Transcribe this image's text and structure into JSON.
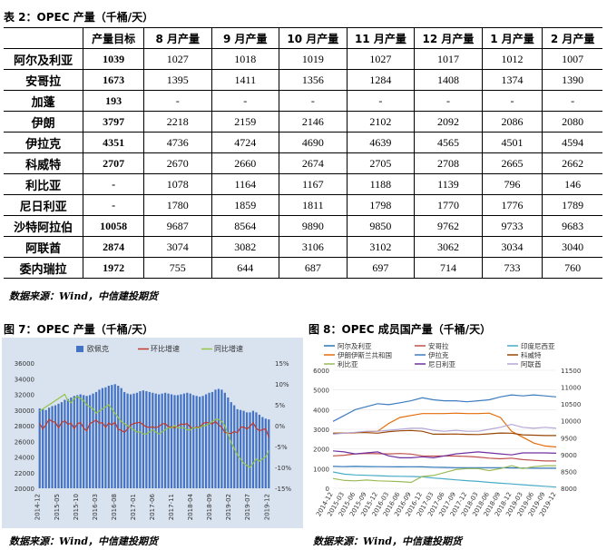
{
  "table": {
    "caption": "表 2：OPEC 产量（千桶/天）",
    "headers": [
      "",
      "产量目标",
      "8 月产量",
      "9 月产量",
      "10 月产量",
      "11 月产量",
      "12 月产量",
      "1 月产量",
      "2 月产量"
    ],
    "rows": [
      [
        "阿尔及利亚",
        "1039",
        "1027",
        "1018",
        "1019",
        "1027",
        "1017",
        "1012",
        "1007"
      ],
      [
        "安哥拉",
        "1673",
        "1395",
        "1411",
        "1356",
        "1284",
        "1408",
        "1374",
        "1390"
      ],
      [
        "加蓬",
        "193",
        "-",
        "-",
        "-",
        "-",
        "-",
        "-",
        "-"
      ],
      [
        "伊朗",
        "3797",
        "2218",
        "2159",
        "2146",
        "2102",
        "2092",
        "2086",
        "2080"
      ],
      [
        "伊拉克",
        "4351",
        "4736",
        "4724",
        "4690",
        "4639",
        "4565",
        "4501",
        "4594"
      ],
      [
        "科威特",
        "2707",
        "2670",
        "2660",
        "2674",
        "2705",
        "2708",
        "2665",
        "2662"
      ],
      [
        "利比亚",
        "-",
        "1078",
        "1164",
        "1167",
        "1188",
        "1139",
        "796",
        "146"
      ],
      [
        "尼日利亚",
        "-",
        "1780",
        "1859",
        "1811",
        "1798",
        "1770",
        "1776",
        "1789"
      ],
      [
        "沙特阿拉伯",
        "10058",
        "9687",
        "8564",
        "9890",
        "9850",
        "9762",
        "9733",
        "9683"
      ],
      [
        "阿联酋",
        "2874",
        "3074",
        "3082",
        "3106",
        "3102",
        "3062",
        "3034",
        "3040"
      ],
      [
        "委内瑞拉",
        "1972",
        "755",
        "644",
        "687",
        "697",
        "714",
        "733",
        "760"
      ]
    ],
    "source": "数据来源：Wind，中信建投期货"
  },
  "figure7": {
    "caption": "图 7：OPEC 产量（千桶/天）",
    "source": "数据来源：Wind，中信建投期货"
  },
  "figure8": {
    "caption": "图 8：OPEC 成员国产量（千桶/天）",
    "source": "数据来源：Wind，中信建投期货"
  },
  "colors": {
    "bar": "#4472C4",
    "mom": "#C0392B",
    "yoy": "#92C447",
    "chart_bg": "#D9E3F0"
  },
  "chart_data": [
    {
      "type": "bar",
      "legend": [
        "欧佩克",
        "环比增速",
        "同比增速"
      ],
      "legend_position": "top",
      "x_ticks": [
        "2014-12",
        "2015-05",
        "2015-10",
        "2016-03",
        "2016-08",
        "2017-01",
        "2017-06",
        "2017-11",
        "2018-04",
        "2018-09",
        "2019-02",
        "2019-07",
        "2019-12"
      ],
      "ylim_left": [
        20000,
        36000
      ],
      "y_ticks_left": [
        "20000",
        "22000",
        "24000",
        "26000",
        "28000",
        "30000",
        "32000",
        "34000",
        "36000"
      ],
      "ylim_right": [
        -15,
        15
      ],
      "y_ticks_right": [
        "15%",
        "10%",
        "5%",
        "0%",
        "-5%",
        "-10%",
        "-15%"
      ],
      "series": [
        {
          "name": "欧佩克",
          "axis": "left",
          "values": [
            30200,
            30100,
            30000,
            30300,
            30500,
            30600,
            30800,
            31000,
            31300,
            31400,
            31600,
            31800,
            31900,
            32000,
            31900,
            31800,
            31900,
            32100,
            32300,
            32600,
            32800,
            32900,
            33100,
            33200,
            33300,
            33100,
            32800,
            32300,
            32100,
            32000,
            32100,
            32200,
            32400,
            32500,
            32400,
            32300,
            32200,
            32100,
            32000,
            32100,
            32200,
            32100,
            32000,
            31900,
            31900,
            32000,
            32100,
            32200,
            32100,
            31900,
            31800,
            31700,
            31800,
            32000,
            32200,
            32300,
            32600,
            32700,
            32600,
            32200,
            31600,
            31000,
            30600,
            30100,
            30000,
            29900,
            29700,
            29700,
            29900,
            29700,
            29400,
            29100,
            28900,
            28800
          ]
        },
        {
          "name": "环比增速",
          "axis": "right",
          "values": [
            0.5,
            -0.8,
            0.2,
            1.5,
            1.0,
            0.8,
            -0.5,
            0.7,
            1.2,
            0.3,
            0.6,
            -0.7,
            0.4,
            0.8,
            -0.6,
            -1.2,
            0.5,
            0.9,
            1.3,
            0.6,
            0.7,
            -0.4,
            0.6,
            0.2,
            0.8,
            -0.9,
            -1.1,
            -1.6,
            -0.8,
            0.2,
            0.5,
            0.7,
            0.8,
            0.2,
            -0.3,
            -0.4,
            -0.3,
            -0.5,
            -0.2,
            0.4,
            0.5,
            -0.3,
            -0.3,
            -0.5,
            -0.1,
            0.4,
            0.3,
            0.5,
            -0.4,
            -0.6,
            -0.3,
            -0.4,
            0.5,
            0.8,
            0.6,
            0.4,
            1.0,
            0.2,
            -0.4,
            -1.6,
            -1.8,
            -1.9,
            -1.4,
            -1.7,
            -0.4,
            -0.3,
            -0.8,
            -0.2,
            0.7,
            -0.6,
            -1.2,
            -1.0,
            -0.7,
            -2.8
          ]
        },
        {
          "name": "同比增速",
          "axis": "right",
          "values": [
            3.5,
            4.0,
            4.5,
            5.0,
            5.5,
            6.0,
            6.5,
            7.0,
            7.5,
            6.0,
            5.5,
            6.5,
            7.0,
            6.5,
            6.0,
            5.0,
            4.5,
            4.0,
            3.0,
            3.5,
            4.0,
            4.5,
            5.0,
            4.0,
            3.0,
            2.0,
            1.0,
            0.5,
            0.0,
            -0.5,
            -1.0,
            -1.5,
            -1.5,
            -2.0,
            -2.0,
            -1.5,
            -1.0,
            -1.5,
            -2.0,
            -1.5,
            -1.0,
            -0.5,
            -0.5,
            0.0,
            -0.5,
            -0.5,
            -0.5,
            -1.0,
            -1.0,
            -0.5,
            -0.5,
            -0.5,
            0.0,
            0.0,
            0.5,
            1.0,
            1.5,
            1.5,
            1.0,
            0.0,
            -2.0,
            -4.0,
            -5.5,
            -7.0,
            -8.0,
            -9.0,
            -9.5,
            -10.0,
            -9.0,
            -8.0,
            -8.5,
            -8.0,
            -7.5,
            -6.0
          ]
        }
      ]
    },
    {
      "type": "line",
      "legend": [
        "阿尔及利亚",
        "安哥拉",
        "印度尼西亚",
        "伊朗伊斯兰共和国",
        "伊拉克",
        "科威特",
        "利比亚",
        "尼日利亚",
        "阿联酋"
      ],
      "legend_position": "top",
      "x_ticks": [
        "2014-12",
        "2015-03",
        "2015-06",
        "2015-09",
        "2015-12",
        "2016-03",
        "2016-06",
        "2016-09",
        "2016-12",
        "2017-03",
        "2017-06",
        "2017-09",
        "2017-12",
        "2018-03",
        "2018-06",
        "2018-09",
        "2018-12",
        "2019-03",
        "2019-06",
        "2019-09",
        "2019-12"
      ],
      "ylim_left": [
        0,
        6000
      ],
      "y_ticks_left": [
        "0",
        "1000",
        "2000",
        "3000",
        "4000",
        "5000",
        "6000"
      ],
      "ylim_right": [
        8000,
        11500
      ],
      "y_ticks_right": [
        "8000",
        "8500",
        "9000",
        "9500",
        "10000",
        "10500",
        "11000",
        "11500"
      ],
      "series": [
        {
          "name": "阿尔及利亚",
          "color": "#2E75B6",
          "axis": "left",
          "values": [
            1110,
            1100,
            1110,
            1105,
            1100,
            1095,
            1090,
            1095,
            1090,
            1070,
            1060,
            1050,
            1050,
            1050,
            1050,
            1050,
            1040,
            1030,
            1020,
            1020,
            1020
          ]
        },
        {
          "name": "安哥拉",
          "color": "#C0504D",
          "axis": "left",
          "values": [
            1650,
            1680,
            1750,
            1770,
            1760,
            1750,
            1770,
            1740,
            1650,
            1640,
            1650,
            1640,
            1620,
            1590,
            1530,
            1500,
            1530,
            1460,
            1420,
            1390,
            1390
          ]
        },
        {
          "name": "印度尼西亚",
          "color": "#4BACC6",
          "axis": "left",
          "values": [
            830,
            720,
            680,
            660,
            640,
            620,
            610,
            600,
            580,
            520,
            480,
            430,
            390,
            350,
            300,
            260,
            220,
            180,
            140,
            100,
            60
          ]
        },
        {
          "name": "伊朗伊斯兰共和国",
          "color": "#E46C0A",
          "axis": "left",
          "values": [
            2800,
            2800,
            2820,
            2880,
            2900,
            3300,
            3600,
            3700,
            3800,
            3800,
            3800,
            3820,
            3800,
            3800,
            3820,
            3600,
            2900,
            2600,
            2300,
            2150,
            2100
          ]
        },
        {
          "name": "伊拉克",
          "color": "#3E7BC0",
          "axis": "left",
          "values": [
            3400,
            3700,
            4000,
            4150,
            4300,
            4250,
            4350,
            4450,
            4600,
            4500,
            4450,
            4450,
            4400,
            4450,
            4500,
            4650,
            4750,
            4700,
            4750,
            4700,
            4650
          ]
        },
        {
          "name": "科威特",
          "color": "#984807",
          "axis": "left",
          "values": [
            2800,
            2810,
            2830,
            2830,
            2800,
            2880,
            2920,
            2940,
            2900,
            2750,
            2750,
            2760,
            2740,
            2730,
            2770,
            2810,
            2800,
            2720,
            2700,
            2680,
            2680
          ]
        },
        {
          "name": "利比亚",
          "color": "#9BBB59",
          "axis": "left",
          "values": [
            500,
            400,
            380,
            420,
            380,
            360,
            340,
            300,
            600,
            650,
            800,
            950,
            1000,
            1000,
            900,
            1000,
            1150,
            1000,
            1100,
            1150,
            1150
          ]
        },
        {
          "name": "尼日利亚",
          "color": "#7030A0",
          "axis": "left",
          "values": [
            1900,
            1850,
            1750,
            1800,
            1850,
            1650,
            1550,
            1550,
            1600,
            1550,
            1650,
            1750,
            1800,
            1850,
            1800,
            1750,
            1700,
            1800,
            1800,
            1800,
            1780
          ]
        },
        {
          "name": "阿联酋",
          "color": "#B4A7D6",
          "axis": "left",
          "values": [
            2750,
            2800,
            2850,
            2900,
            2900,
            2950,
            3000,
            3050,
            3050,
            2950,
            2900,
            2950,
            2900,
            2900,
            3000,
            3100,
            3250,
            3100,
            3050,
            3100,
            3050
          ]
        }
      ]
    }
  ]
}
